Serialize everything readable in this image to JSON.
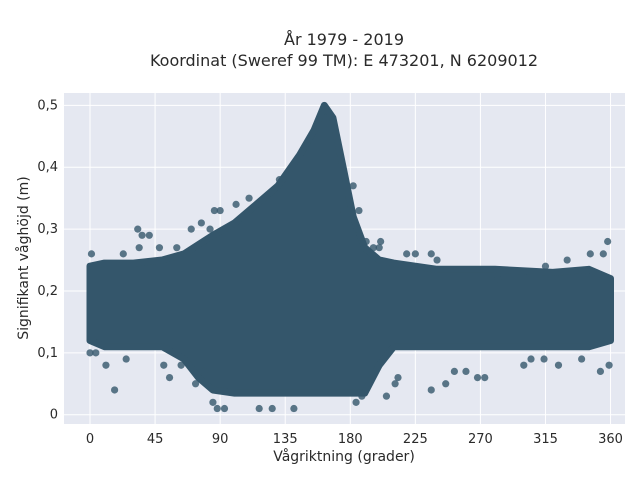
{
  "chart_data": {
    "type": "scatter",
    "title_line1": "År 1979 - 2019",
    "title_line2": "Koordinat (Sweref 99 TM): E 473201, N 6209012",
    "xlabel": "Vågriktning (grader)",
    "ylabel": "Signifikant våghöjd (m)",
    "xlim": [
      -18,
      370
    ],
    "ylim": [
      -0.015,
      0.52
    ],
    "x_ticks": [
      0,
      45,
      90,
      135,
      180,
      225,
      270,
      315,
      360
    ],
    "x_tick_labels": [
      "0",
      "45",
      "90",
      "135",
      "180",
      "225",
      "270",
      "315",
      "360"
    ],
    "y_ticks": [
      0,
      0.1,
      0.2,
      0.3,
      0.4,
      0.5
    ],
    "y_tick_labels": [
      "0",
      "0,1",
      "0,2",
      "0,3",
      "0,4",
      "0,5"
    ],
    "grid": true,
    "colors": {
      "marker": "#34566b",
      "plot_background": "#e5e8f1",
      "grid": "#ffffff"
    },
    "series": [
      {
        "dense_band": [
          {
            "x": 0,
            "lo": 0.12,
            "hi": 0.24
          },
          {
            "x": 10,
            "lo": 0.11,
            "hi": 0.245
          },
          {
            "x": 30,
            "lo": 0.11,
            "hi": 0.245
          },
          {
            "x": 50,
            "lo": 0.11,
            "hi": 0.25
          },
          {
            "x": 65,
            "lo": 0.09,
            "hi": 0.26
          },
          {
            "x": 75,
            "lo": 0.06,
            "hi": 0.275
          },
          {
            "x": 85,
            "lo": 0.04,
            "hi": 0.29
          },
          {
            "x": 100,
            "lo": 0.035,
            "hi": 0.31
          },
          {
            "x": 115,
            "lo": 0.035,
            "hi": 0.34
          },
          {
            "x": 130,
            "lo": 0.035,
            "hi": 0.37
          },
          {
            "x": 145,
            "lo": 0.035,
            "hi": 0.42
          },
          {
            "x": 155,
            "lo": 0.035,
            "hi": 0.46
          },
          {
            "x": 162,
            "lo": 0.035,
            "hi": 0.5
          },
          {
            "x": 168,
            "lo": 0.035,
            "hi": 0.48
          },
          {
            "x": 175,
            "lo": 0.035,
            "hi": 0.4
          },
          {
            "x": 182,
            "lo": 0.035,
            "hi": 0.32
          },
          {
            "x": 190,
            "lo": 0.035,
            "hi": 0.27
          },
          {
            "x": 200,
            "lo": 0.08,
            "hi": 0.25
          },
          {
            "x": 210,
            "lo": 0.11,
            "hi": 0.245
          },
          {
            "x": 240,
            "lo": 0.11,
            "hi": 0.235
          },
          {
            "x": 280,
            "lo": 0.11,
            "hi": 0.235
          },
          {
            "x": 320,
            "lo": 0.11,
            "hi": 0.23
          },
          {
            "x": 345,
            "lo": 0.11,
            "hi": 0.235
          },
          {
            "x": 360,
            "lo": 0.12,
            "hi": 0.22
          }
        ],
        "outliers": [
          [
            0,
            0.1
          ],
          [
            1,
            0.26
          ],
          [
            4,
            0.1
          ],
          [
            11,
            0.08
          ],
          [
            17,
            0.04
          ],
          [
            23,
            0.26
          ],
          [
            25,
            0.09
          ],
          [
            33,
            0.3
          ],
          [
            34,
            0.27
          ],
          [
            36,
            0.29
          ],
          [
            41,
            0.29
          ],
          [
            48,
            0.27
          ],
          [
            51,
            0.08
          ],
          [
            55,
            0.06
          ],
          [
            60,
            0.27
          ],
          [
            63,
            0.08
          ],
          [
            67,
            0.26
          ],
          [
            70,
            0.3
          ],
          [
            73,
            0.05
          ],
          [
            77,
            0.31
          ],
          [
            79,
            0.07
          ],
          [
            83,
            0.3
          ],
          [
            85,
            0.02
          ],
          [
            86,
            0.33
          ],
          [
            90,
            0.33
          ],
          [
            88,
            0.01
          ],
          [
            93,
            0.01
          ],
          [
            101,
            0.34
          ],
          [
            110,
            0.35
          ],
          [
            117,
            0.01
          ],
          [
            126,
            0.01
          ],
          [
            131,
            0.38
          ],
          [
            141,
            0.01
          ],
          [
            171,
            0.33
          ],
          [
            182,
            0.37
          ],
          [
            184,
            0.02
          ],
          [
            185,
            0.3
          ],
          [
            188,
            0.03
          ],
          [
            186,
            0.33
          ],
          [
            191,
            0.28
          ],
          [
            196,
            0.27
          ],
          [
            200,
            0.27
          ],
          [
            201,
            0.28
          ],
          [
            205,
            0.03
          ],
          [
            211,
            0.05
          ],
          [
            213,
            0.06
          ],
          [
            219,
            0.26
          ],
          [
            225,
            0.26
          ],
          [
            236,
            0.26
          ],
          [
            240,
            0.25
          ],
          [
            236,
            0.04
          ],
          [
            246,
            0.05
          ],
          [
            252,
            0.07
          ],
          [
            260,
            0.07
          ],
          [
            268,
            0.06
          ],
          [
            273,
            0.06
          ],
          [
            282,
            0.22
          ],
          [
            300,
            0.08
          ],
          [
            305,
            0.09
          ],
          [
            315,
            0.24
          ],
          [
            314,
            0.09
          ],
          [
            324,
            0.08
          ],
          [
            330,
            0.25
          ],
          [
            340,
            0.09
          ],
          [
            346,
            0.26
          ],
          [
            353,
            0.07
          ],
          [
            355,
            0.26
          ],
          [
            358,
            0.28
          ],
          [
            359,
            0.08
          ]
        ]
      }
    ]
  }
}
